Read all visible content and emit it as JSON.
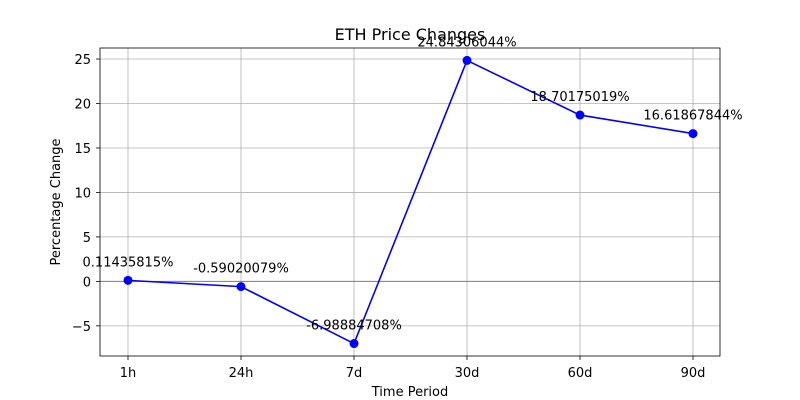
{
  "chart_data": {
    "type": "line",
    "title": "ETH Price Changes",
    "xlabel": "Time Period",
    "ylabel": "Percentage Change",
    "categories": [
      "1h",
      "24h",
      "7d",
      "30d",
      "60d",
      "90d"
    ],
    "series": [
      {
        "name": "ETH",
        "values": [
          0.11435815,
          -0.59020079,
          -6.98884708,
          24.84306044,
          18.70175019,
          16.61867844
        ],
        "labels": [
          "0.11435815%",
          "-0.59020079%",
          "-6.98884708%",
          "24.84306044%",
          "18.70175019%",
          "16.61867844%"
        ]
      }
    ],
    "ylim": [
      -8.39,
      26.24
    ],
    "yticks": [
      -5,
      0,
      5,
      10,
      15,
      20,
      25
    ],
    "ytick_labels": [
      "−5",
      "0",
      "5",
      "10",
      "15",
      "20",
      "25"
    ],
    "grid": true,
    "zero_line": true,
    "line_color": "#0000ff",
    "marker_color": "#0000ff"
  }
}
